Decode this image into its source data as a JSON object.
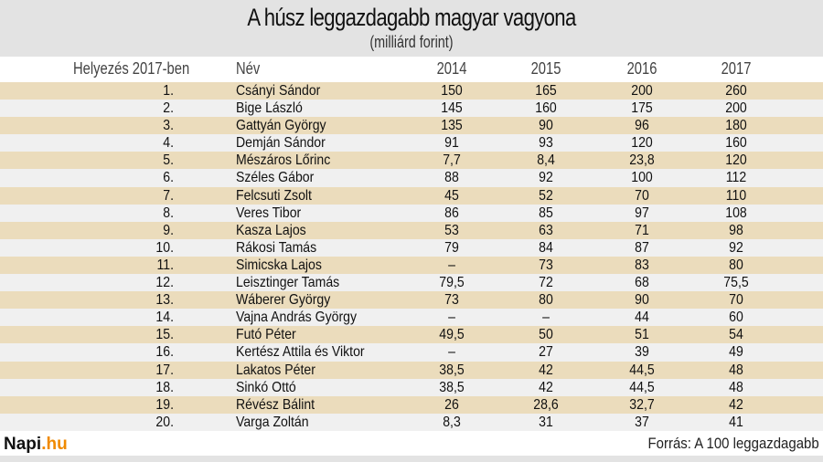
{
  "header": {
    "title": "A húsz leggazdagabb magyar vagyona",
    "subtitle": "(milliárd forint)"
  },
  "table": {
    "columns": [
      "Helyezés 2017-ben",
      "Név",
      "2014",
      "2015",
      "2016",
      "2017"
    ],
    "rows": [
      {
        "rank": "1.",
        "name": "Csányi Sándor",
        "y2014": "150",
        "y2015": "165",
        "y2016": "200",
        "y2017": "260"
      },
      {
        "rank": "2.",
        "name": "Bige László",
        "y2014": "145",
        "y2015": "160",
        "y2016": "175",
        "y2017": "200"
      },
      {
        "rank": "3.",
        "name": "Gattyán György",
        "y2014": "135",
        "y2015": "90",
        "y2016": "96",
        "y2017": "180"
      },
      {
        "rank": "4.",
        "name": "Demján Sándor",
        "y2014": "91",
        "y2015": "93",
        "y2016": "120",
        "y2017": "160"
      },
      {
        "rank": "5.",
        "name": "Mészáros Lőrinc",
        "y2014": "7,7",
        "y2015": "8,4",
        "y2016": "23,8",
        "y2017": "120"
      },
      {
        "rank": "6.",
        "name": "Széles Gábor",
        "y2014": "88",
        "y2015": "92",
        "y2016": "100",
        "y2017": "112"
      },
      {
        "rank": "7.",
        "name": "Felcsuti Zsolt",
        "y2014": "45",
        "y2015": "52",
        "y2016": "70",
        "y2017": "110"
      },
      {
        "rank": "8.",
        "name": "Veres Tibor",
        "y2014": "86",
        "y2015": "85",
        "y2016": "97",
        "y2017": "108"
      },
      {
        "rank": "9.",
        "name": "Kasza Lajos",
        "y2014": "53",
        "y2015": "63",
        "y2016": "71",
        "y2017": "98"
      },
      {
        "rank": "10.",
        "name": "Rákosi Tamás",
        "y2014": "79",
        "y2015": "84",
        "y2016": "87",
        "y2017": "92"
      },
      {
        "rank": "11.",
        "name": "Simicska Lajos",
        "y2014": "–",
        "y2015": "73",
        "y2016": "83",
        "y2017": "80"
      },
      {
        "rank": "12.",
        "name": "Leisztinger Tamás",
        "y2014": "79,5",
        "y2015": "72",
        "y2016": "68",
        "y2017": "75,5"
      },
      {
        "rank": "13.",
        "name": "Wáberer György",
        "y2014": "73",
        "y2015": "80",
        "y2016": "90",
        "y2017": "70"
      },
      {
        "rank": "14.",
        "name": "Vajna András György",
        "y2014": "–",
        "y2015": "–",
        "y2016": "44",
        "y2017": "60"
      },
      {
        "rank": "15.",
        "name": "Futó Péter",
        "y2014": "49,5",
        "y2015": "50",
        "y2016": "51",
        "y2017": "54"
      },
      {
        "rank": "16.",
        "name": "Kertész Attila és Viktor",
        "y2014": "–",
        "y2015": "27",
        "y2016": "39",
        "y2017": "49"
      },
      {
        "rank": "17.",
        "name": "Lakatos Péter",
        "y2014": "38,5",
        "y2015": "42",
        "y2016": "44,5",
        "y2017": "48"
      },
      {
        "rank": "18.",
        "name": "Sinkó Ottó",
        "y2014": "38,5",
        "y2015": "42",
        "y2016": "44,5",
        "y2017": "48"
      },
      {
        "rank": "19.",
        "name": "Révész Bálint",
        "y2014": "26",
        "y2015": "28,6",
        "y2016": "32,7",
        "y2017": "42"
      },
      {
        "rank": "20.",
        "name": "Varga Zoltán",
        "y2014": "8,3",
        "y2015": "31",
        "y2016": "37",
        "y2017": "41"
      }
    ]
  },
  "footer": {
    "logo_main": "Napi",
    "logo_accent": ".hu",
    "source": "Forrás: A 100 leggazdagabb"
  },
  "colors": {
    "odd_row": "#ebdcbc",
    "even_row": "#f0f0f0",
    "header_band": "#e3e3e3",
    "logo_accent": "#f08a00"
  },
  "chart_data": {
    "type": "table",
    "title": "A húsz leggazdagabb magyar vagyona",
    "subtitle": "(milliárd forint)",
    "columns": [
      "Helyezés 2017-ben",
      "Név",
      "2014",
      "2015",
      "2016",
      "2017"
    ],
    "categories": [
      "Csányi Sándor",
      "Bige László",
      "Gattyán György",
      "Demján Sándor",
      "Mészáros Lőrinc",
      "Széles Gábor",
      "Felcsuti Zsolt",
      "Veres Tibor",
      "Kasza Lajos",
      "Rákosi Tamás",
      "Simicska Lajos",
      "Leisztinger Tamás",
      "Wáberer György",
      "Vajna András György",
      "Futó Péter",
      "Kertész Attila és Viktor",
      "Lakatos Péter",
      "Sinkó Ottó",
      "Révész Bálint",
      "Varga Zoltán"
    ],
    "series": [
      {
        "name": "2014",
        "values": [
          150,
          145,
          135,
          91,
          7.7,
          88,
          45,
          86,
          53,
          79,
          null,
          79.5,
          73,
          null,
          49.5,
          null,
          38.5,
          38.5,
          26,
          8.3
        ]
      },
      {
        "name": "2015",
        "values": [
          165,
          160,
          90,
          93,
          8.4,
          92,
          52,
          85,
          63,
          84,
          73,
          72,
          80,
          null,
          50,
          27,
          42,
          42,
          28.6,
          31
        ]
      },
      {
        "name": "2016",
        "values": [
          200,
          175,
          96,
          120,
          23.8,
          100,
          70,
          97,
          71,
          87,
          83,
          68,
          90,
          44,
          51,
          39,
          44.5,
          44.5,
          32.7,
          37
        ]
      },
      {
        "name": "2017",
        "values": [
          260,
          200,
          180,
          160,
          120,
          112,
          110,
          108,
          98,
          92,
          80,
          75.5,
          70,
          60,
          54,
          49,
          48,
          48,
          42,
          41
        ]
      }
    ],
    "source": "Forrás: A 100 leggazdagabb"
  }
}
